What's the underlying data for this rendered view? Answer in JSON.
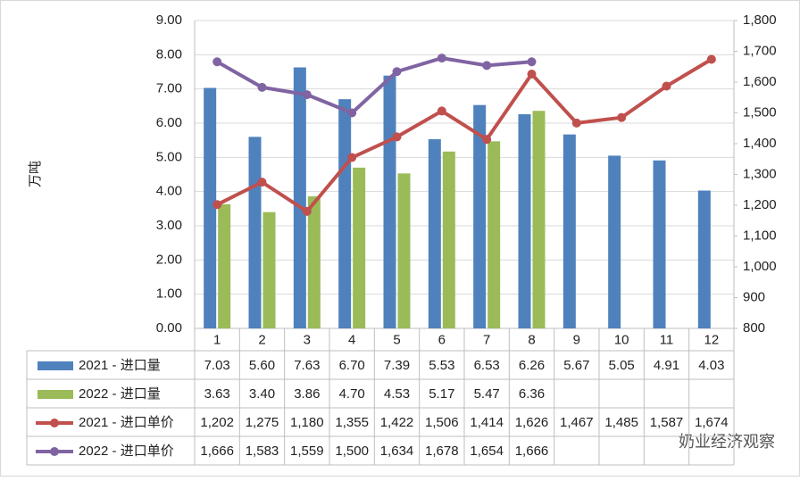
{
  "chart_data": {
    "type": "bar-line-table",
    "y_label": "万吨",
    "watermark": "奶业经济观察",
    "categories": [
      "1",
      "2",
      "3",
      "4",
      "5",
      "6",
      "7",
      "8",
      "9",
      "10",
      "11",
      "12"
    ],
    "series": [
      {
        "name": "2021 - 进口量",
        "type": "bar",
        "color": "#4f81bd",
        "values": [
          7.03,
          5.6,
          7.63,
          6.7,
          7.39,
          5.53,
          6.53,
          6.26,
          5.67,
          5.05,
          4.91,
          4.03
        ],
        "value_labels": [
          "7.03",
          "5.60",
          "7.63",
          "6.70",
          "7.39",
          "5.53",
          "6.53",
          "6.26",
          "5.67",
          "5.05",
          "4.91",
          "4.03"
        ]
      },
      {
        "name": "2022 - 进口量",
        "type": "bar",
        "color": "#9bbb59",
        "values": [
          3.63,
          3.4,
          3.86,
          4.7,
          4.53,
          5.17,
          5.47,
          6.36,
          null,
          null,
          null,
          null
        ],
        "value_labels": [
          "3.63",
          "3.40",
          "3.86",
          "4.70",
          "4.53",
          "5.17",
          "5.47",
          "6.36",
          null,
          null,
          null,
          null
        ]
      },
      {
        "name": "2021 - 进口单价",
        "type": "line",
        "axis": "y2",
        "color": "#c0504d",
        "values": [
          1202,
          1275,
          1180,
          1355,
          1422,
          1506,
          1414,
          1626,
          1467,
          1485,
          1587,
          1674
        ],
        "value_labels": [
          "1,202",
          "1,275",
          "1,180",
          "1,355",
          "1,422",
          "1,506",
          "1,414",
          "1,626",
          "1,467",
          "1,485",
          "1,587",
          "1,674"
        ]
      },
      {
        "name": "2022 - 进口单价",
        "type": "line",
        "axis": "y2",
        "color": "#8064a2",
        "values": [
          1666,
          1583,
          1559,
          1500,
          1634,
          1678,
          1654,
          1666,
          null,
          null,
          null,
          null
        ],
        "value_labels": [
          "1,666",
          "1,583",
          "1,559",
          "1,500",
          "1,634",
          "1,678",
          "1,654",
          "1,666",
          null,
          null,
          null,
          null
        ]
      }
    ],
    "ylim": [
      0,
      9
    ],
    "yticks": [
      {
        "value": 0,
        "label": "0.00"
      },
      {
        "value": 1,
        "label": "1.00"
      },
      {
        "value": 2,
        "label": "2.00"
      },
      {
        "value": 3,
        "label": "3.00"
      },
      {
        "value": 4,
        "label": "4.00"
      },
      {
        "value": 5,
        "label": "5.00"
      },
      {
        "value": 6,
        "label": "6.00"
      },
      {
        "value": 7,
        "label": "7.00"
      },
      {
        "value": 8,
        "label": "8.00"
      },
      {
        "value": 9,
        "label": "9.00"
      }
    ],
    "y2lim": [
      800,
      1800
    ],
    "y2ticks": [
      800,
      900,
      {
        "value": 1000,
        "label": "1,000"
      },
      {
        "value": 1100,
        "label": "1,100"
      },
      {
        "value": 1200,
        "label": "1,200"
      },
      {
        "value": 1300,
        "label": "1,300"
      },
      {
        "value": 1400,
        "label": "1,400"
      },
      {
        "value": 1500,
        "label": "1,500"
      },
      {
        "value": 1600,
        "label": "1,600"
      },
      {
        "value": 1700,
        "label": "1,700"
      },
      {
        "value": 1800,
        "label": "1,800"
      }
    ],
    "grid": true
  }
}
